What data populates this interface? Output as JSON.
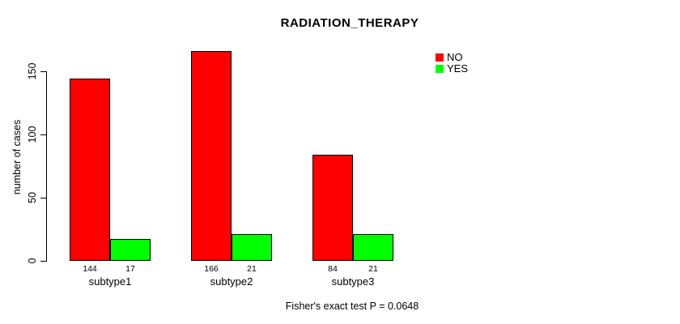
{
  "chart_data": {
    "type": "bar",
    "title": "RADIATION_THERAPY",
    "ylabel": "number of cases",
    "xlabel": "",
    "categories": [
      "subtype1",
      "subtype2",
      "subtype3"
    ],
    "series": [
      {
        "name": "NO",
        "color": "#ff0000",
        "values": [
          144,
          166,
          84
        ]
      },
      {
        "name": "YES",
        "color": "#00ff00",
        "values": [
          17,
          21,
          21
        ]
      }
    ],
    "yticks": [
      0,
      50,
      100,
      150
    ],
    "ylim": [
      0,
      150
    ],
    "grid": false,
    "legend_position": "top-right",
    "footnote": "Fisher's exact test P = 0.0648"
  },
  "colors": {
    "bar_no": "#ff0000",
    "bar_yes": "#00ff00",
    "bar_border": "#000000",
    "axis": "#000000",
    "text": "#000000",
    "background": "#ffffff"
  }
}
